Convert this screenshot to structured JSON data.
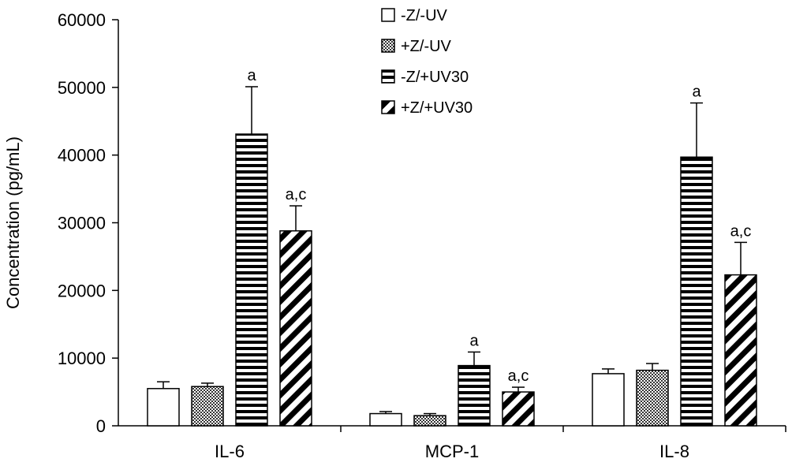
{
  "chart_data": {
    "type": "bar",
    "ylabel": "Concentration (pg/mL)",
    "ylim": [
      0,
      60000
    ],
    "yticks": [
      0,
      10000,
      20000,
      30000,
      40000,
      50000,
      60000
    ],
    "categories": [
      "IL-6",
      "MCP-1",
      "IL-8"
    ],
    "legend_position": "top-center",
    "grid": false,
    "series": [
      {
        "name": "-Z/-UV",
        "pattern": "white",
        "values": [
          5500,
          1800,
          7700
        ],
        "errors": [
          1000,
          300,
          700
        ],
        "labels": [
          "",
          "",
          ""
        ]
      },
      {
        "name": "+Z/-UV",
        "pattern": "checker",
        "values": [
          5800,
          1500,
          8200
        ],
        "errors": [
          500,
          300,
          1000
        ],
        "labels": [
          "",
          "",
          ""
        ]
      },
      {
        "name": "-Z/+UV30",
        "pattern": "horizontal-stripes",
        "values": [
          43100,
          8900,
          39700
        ],
        "errors": [
          7000,
          2000,
          8000
        ],
        "labels": [
          "a",
          "a",
          "a"
        ]
      },
      {
        "name": "+Z/+UV30",
        "pattern": "diagonal-stripes",
        "values": [
          28800,
          5000,
          22300
        ],
        "errors": [
          3700,
          700,
          4800
        ],
        "labels": [
          "a,c",
          "a,c",
          "a,c"
        ]
      }
    ]
  }
}
